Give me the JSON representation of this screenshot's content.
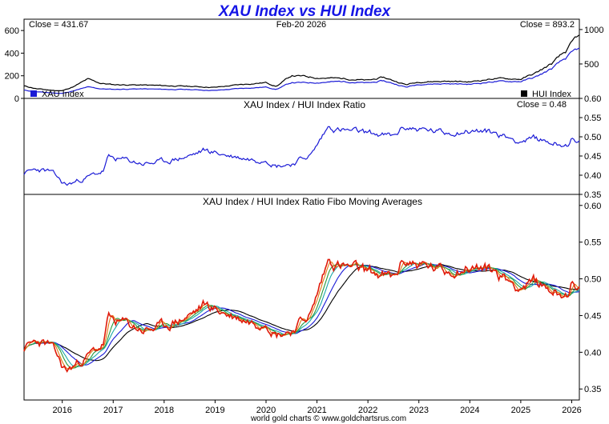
{
  "chart_data": {
    "type": "line",
    "title": "XAU Index vs HUI Index",
    "footer": "world gold charts © www.goldchartsrus.com",
    "date_label": "Feb-20  2026",
    "x_ticks": [
      "2016",
      "2017",
      "2018",
      "2019",
      "2020",
      "2021",
      "2022",
      "2023",
      "2024",
      "2025",
      "2026"
    ],
    "colors": {
      "xau": "#1a1ad6",
      "hui": "#000000",
      "ratio": "#1a1ad6",
      "ratio_raw": "#e01a0a",
      "fibo": [
        "#e01a0a",
        "#e07a10",
        "#2a9a3a",
        "#1aa8a8",
        "#1a1ad6",
        "#000000"
      ]
    },
    "panels": [
      {
        "title": "",
        "left_axis": {
          "ylim": [
            0,
            700
          ],
          "ticks": [
            0,
            200,
            400,
            600
          ]
        },
        "right_axis": {
          "ylim": [
            0,
            1150
          ],
          "ticks": [
            500,
            1000
          ]
        },
        "close_left": "Close = 431.67",
        "close_right": "Close = 893.2",
        "legend_left": "XAU Index",
        "legend_right": "HUI Index",
        "series": [
          {
            "name": "XAU Index",
            "axis": "left",
            "x": [
              2015.25,
              2015.5,
              2015.75,
              2016.0,
              2016.25,
              2016.5,
              2016.75,
              2017.0,
              2017.5,
              2018.0,
              2018.5,
              2019.0,
              2019.5,
              2020.0,
              2020.2,
              2020.5,
              2020.75,
              2021.0,
              2021.5,
              2022.0,
              2022.3,
              2022.75,
              2023.0,
              2023.5,
              2024.0,
              2024.5,
              2025.0,
              2025.3,
              2025.6,
              2025.9,
              2026.1
            ],
            "values": [
              72,
              58,
              50,
              44,
              70,
              100,
              85,
              80,
              84,
              80,
              78,
              70,
              88,
              100,
              80,
              140,
              138,
              140,
              150,
              135,
              155,
              100,
              125,
              130,
              125,
              150,
              150,
              190,
              260,
              360,
              432
            ]
          },
          {
            "name": "HUI Index",
            "axis": "right",
            "x": [
              2015.25,
              2015.5,
              2015.75,
              2016.0,
              2016.25,
              2016.5,
              2016.75,
              2017.0,
              2017.5,
              2018.0,
              2018.5,
              2019.0,
              2019.5,
              2020.0,
              2020.2,
              2020.5,
              2020.75,
              2021.0,
              2021.5,
              2022.0,
              2022.3,
              2022.75,
              2023.0,
              2023.5,
              2024.0,
              2024.5,
              2025.0,
              2025.3,
              2025.6,
              2025.9,
              2026.1
            ],
            "values": [
              180,
              140,
              120,
              110,
              180,
              280,
              220,
              200,
              195,
              185,
              175,
              160,
              200,
              230,
              175,
              330,
              320,
              300,
              290,
              260,
              305,
              200,
              240,
              250,
              240,
              290,
              280,
              370,
              500,
              690,
              893
            ]
          }
        ]
      },
      {
        "title": "XAU Index / HUI Index Ratio",
        "right_axis": {
          "ylim": [
            0.35,
            0.6
          ],
          "ticks": [
            0.35,
            0.4,
            0.45,
            0.5,
            0.55,
            0.6
          ]
        },
        "close_right": "Close = 0.48",
        "series": [
          {
            "name": "XAU/HUI ratio",
            "x": [
              2015.25,
              2015.5,
              2015.75,
              2015.9,
              2016.0,
              2016.1,
              2016.4,
              2016.8,
              2016.9,
              2017.2,
              2017.6,
              2018.0,
              2018.5,
              2018.8,
              2019.3,
              2019.8,
              2020.0,
              2020.2,
              2020.5,
              2020.9,
              2021.1,
              2021.25,
              2021.35,
              2021.6,
              2022.0,
              2022.5,
              2022.7,
              2023.0,
              2023.5,
              2023.8,
              2024.2,
              2024.5,
              2024.7,
              2025.0,
              2025.3,
              2025.6,
              2025.9,
              2026.0,
              2026.1
            ],
            "values": [
              0.405,
              0.415,
              0.41,
              0.395,
              0.38,
              0.375,
              0.39,
              0.41,
              0.445,
              0.44,
              0.43,
              0.435,
              0.45,
              0.465,
              0.45,
              0.44,
              0.445,
              0.425,
              0.43,
              0.455,
              0.5,
              0.53,
              0.52,
              0.515,
              0.51,
              0.5,
              0.525,
              0.52,
              0.51,
              0.515,
              0.515,
              0.51,
              0.5,
              0.49,
              0.495,
              0.485,
              0.48,
              0.495,
              0.48
            ]
          }
        ]
      },
      {
        "title": "XAU Index / HUI Index Ratio Fibo Moving Averages",
        "right_axis": {
          "ylim": [
            0.335,
            0.615
          ],
          "ticks": [
            0.35,
            0.4,
            0.45,
            0.5,
            0.55,
            0.6
          ]
        },
        "series": [
          {
            "name": "XAU/HUI ratio",
            "x": [
              2015.25,
              2015.5,
              2015.75,
              2015.9,
              2016.0,
              2016.1,
              2016.4,
              2016.8,
              2016.9,
              2017.2,
              2017.6,
              2018.0,
              2018.5,
              2018.8,
              2019.3,
              2019.8,
              2020.0,
              2020.2,
              2020.5,
              2020.9,
              2021.1,
              2021.25,
              2021.35,
              2021.6,
              2022.0,
              2022.5,
              2022.7,
              2023.0,
              2023.5,
              2023.8,
              2024.2,
              2024.5,
              2024.7,
              2025.0,
              2025.3,
              2025.6,
              2025.9,
              2026.0,
              2026.1
            ],
            "values": [
              0.405,
              0.415,
              0.41,
              0.395,
              0.38,
              0.375,
              0.39,
              0.41,
              0.445,
              0.44,
              0.43,
              0.435,
              0.45,
              0.465,
              0.45,
              0.44,
              0.445,
              0.425,
              0.43,
              0.455,
              0.5,
              0.53,
              0.52,
              0.515,
              0.51,
              0.5,
              0.525,
              0.52,
              0.51,
              0.515,
              0.515,
              0.51,
              0.5,
              0.49,
              0.495,
              0.485,
              0.48,
              0.495,
              0.48
            ]
          }
        ]
      }
    ]
  }
}
